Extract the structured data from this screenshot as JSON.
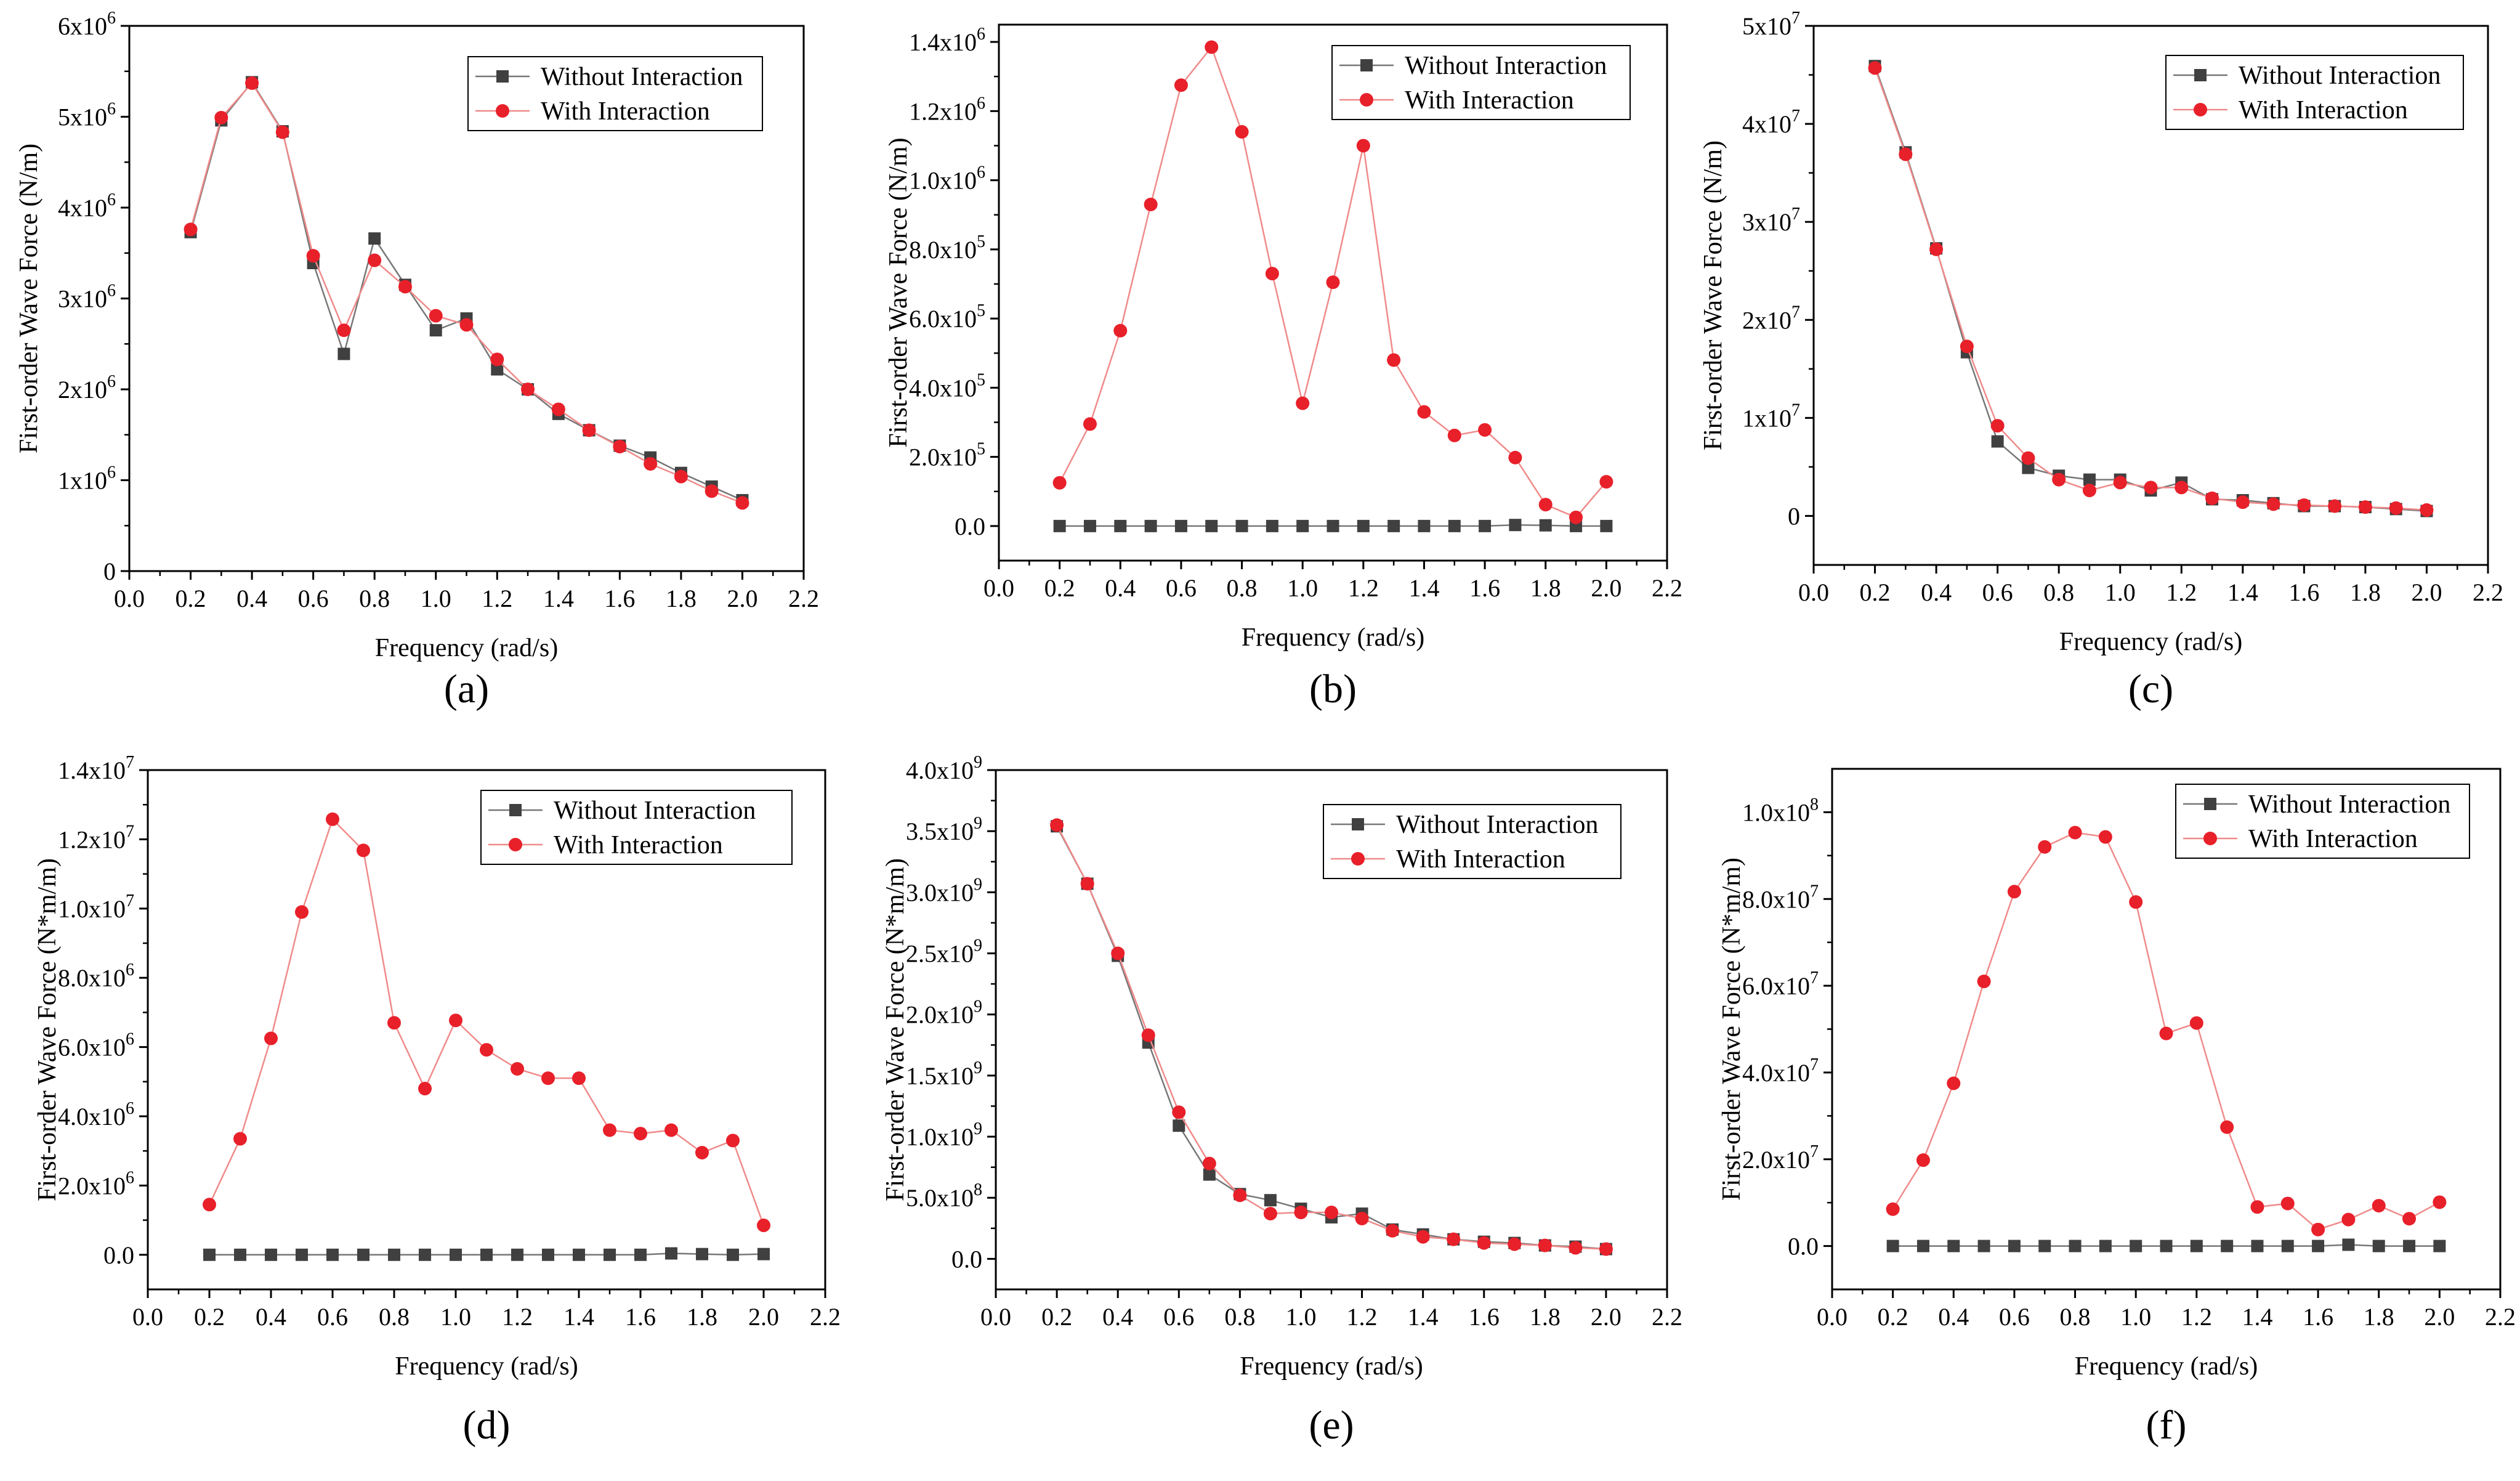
{
  "figure": {
    "legend_labels": {
      "without": "Without Interaction",
      "with": "With Interaction"
    },
    "colors": {
      "without": "#404040",
      "with": "#e8202a",
      "line_with": "#f08a8a",
      "line_without": "#777777",
      "axis": "#000000"
    }
  },
  "chart_data": [
    {
      "type": "line",
      "panel_label": "(a)",
      "xlabel": "Frequency (rad/s)",
      "ylabel": "First-order Wave Force (N/m)",
      "xlim": [
        0.0,
        2.2
      ],
      "ylim": [
        0,
        6000000
      ],
      "x_ticks": [
        "0.0",
        "0.2",
        "0.4",
        "0.6",
        "0.8",
        "1.0",
        "1.2",
        "1.4",
        "1.6",
        "1.8",
        "2.0",
        "2.2"
      ],
      "y_ticks": [
        {
          "v": 0,
          "m": "0",
          "e": ""
        },
        {
          "v": 1000000,
          "m": "1x10",
          "e": "6"
        },
        {
          "v": 2000000,
          "m": "2x10",
          "e": "6"
        },
        {
          "v": 3000000,
          "m": "3x10",
          "e": "6"
        },
        {
          "v": 4000000,
          "m": "4x10",
          "e": "6"
        },
        {
          "v": 5000000,
          "m": "5x10",
          "e": "6"
        },
        {
          "v": 6000000,
          "m": "6x10",
          "e": "6"
        }
      ],
      "legend": "top-right",
      "x": [
        0.2,
        0.3,
        0.4,
        0.5,
        0.6,
        0.7,
        0.8,
        0.9,
        1.0,
        1.1,
        1.2,
        1.3,
        1.4,
        1.5,
        1.6,
        1.7,
        1.8,
        1.9,
        2.0
      ],
      "series": [
        {
          "name": "Without Interaction",
          "values": [
            3730000,
            4960000,
            5380000,
            4840000,
            3390000,
            2390000,
            3660000,
            3150000,
            2650000,
            2780000,
            2220000,
            2000000,
            1730000,
            1550000,
            1380000,
            1250000,
            1080000,
            930000,
            780000
          ]
        },
        {
          "name": "With Interaction",
          "values": [
            3760000,
            4990000,
            5370000,
            4830000,
            3470000,
            2650000,
            3420000,
            3130000,
            2810000,
            2710000,
            2330000,
            2000000,
            1780000,
            1550000,
            1370000,
            1180000,
            1040000,
            880000,
            750000
          ]
        }
      ]
    },
    {
      "type": "line",
      "panel_label": "(b)",
      "xlabel": "Frequency (rad/s)",
      "ylabel": "First-order Wave Force (N/m)",
      "xlim": [
        0.0,
        2.2
      ],
      "ylim": [
        -100000,
        1450000
      ],
      "x_ticks": [
        "0.0",
        "0.2",
        "0.4",
        "0.6",
        "0.8",
        "1.0",
        "1.2",
        "1.4",
        "1.6",
        "1.8",
        "2.0",
        "2.2"
      ],
      "y_ticks": [
        {
          "v": 0,
          "m": "0.0",
          "e": ""
        },
        {
          "v": 200000,
          "m": "2.0x10",
          "e": "5"
        },
        {
          "v": 400000,
          "m": "4.0x10",
          "e": "5"
        },
        {
          "v": 600000,
          "m": "6.0x10",
          "e": "5"
        },
        {
          "v": 800000,
          "m": "8.0x10",
          "e": "5"
        },
        {
          "v": 1000000,
          "m": "1.0x10",
          "e": "6"
        },
        {
          "v": 1200000,
          "m": "1.2x10",
          "e": "6"
        },
        {
          "v": 1400000,
          "m": "1.4x10",
          "e": "6"
        }
      ],
      "legend": "top-right",
      "x": [
        0.2,
        0.3,
        0.4,
        0.5,
        0.6,
        0.7,
        0.8,
        0.9,
        1.0,
        1.1,
        1.2,
        1.3,
        1.4,
        1.5,
        1.6,
        1.7,
        1.8,
        1.9,
        2.0
      ],
      "series": [
        {
          "name": "Without Interaction",
          "values": [
            0,
            0,
            0,
            0,
            0,
            0,
            0,
            0,
            0,
            0,
            0,
            0,
            0,
            0,
            0,
            3000,
            2000,
            0,
            0
          ]
        },
        {
          "name": "With Interaction",
          "values": [
            125000,
            295000,
            565000,
            930000,
            1275000,
            1385000,
            1140000,
            730000,
            355000,
            705000,
            1100000,
            480000,
            330000,
            262000,
            278000,
            198000,
            62000,
            25000,
            128000
          ]
        }
      ]
    },
    {
      "type": "line",
      "panel_label": "(c)",
      "xlabel": "Frequency (rad/s)",
      "ylabel": "First-order Wave Force (N/m)",
      "xlim": [
        0.0,
        2.2
      ],
      "ylim": [
        -5000000,
        50000000
      ],
      "x_ticks": [
        "0.0",
        "0.2",
        "0.4",
        "0.6",
        "0.8",
        "1.0",
        "1.2",
        "1.4",
        "1.6",
        "1.8",
        "2.0",
        "2.2"
      ],
      "y_ticks": [
        {
          "v": 0,
          "m": "0",
          "e": ""
        },
        {
          "v": 10000000,
          "m": "1x10",
          "e": "7"
        },
        {
          "v": 20000000,
          "m": "2x10",
          "e": "7"
        },
        {
          "v": 30000000,
          "m": "3x10",
          "e": "7"
        },
        {
          "v": 40000000,
          "m": "4x10",
          "e": "7"
        },
        {
          "v": 50000000,
          "m": "5x10",
          "e": "7"
        }
      ],
      "legend": "top-right",
      "x": [
        0.2,
        0.3,
        0.4,
        0.5,
        0.6,
        0.7,
        0.8,
        0.9,
        1.0,
        1.1,
        1.2,
        1.3,
        1.4,
        1.5,
        1.6,
        1.7,
        1.8,
        1.9,
        2.0
      ],
      "series": [
        {
          "name": "Without Interaction",
          "values": [
            45900000,
            37100000,
            27300000,
            16700000,
            7600000,
            4900000,
            4100000,
            3700000,
            3700000,
            2600000,
            3400000,
            1700000,
            1600000,
            1300000,
            1000000,
            1000000,
            900000,
            700000,
            500000
          ]
        },
        {
          "name": "With Interaction",
          "values": [
            45700000,
            36900000,
            27200000,
            17300000,
            9200000,
            5900000,
            3700000,
            2600000,
            3400000,
            2900000,
            2900000,
            1800000,
            1400000,
            1200000,
            1100000,
            1000000,
            900000,
            800000,
            600000
          ]
        }
      ]
    },
    {
      "type": "line",
      "panel_label": "(d)",
      "xlabel": "Frequency (rad/s)",
      "ylabel": "First-order Wave Force (N*m/m)",
      "xlim": [
        0.0,
        2.2
      ],
      "ylim": [
        -1000000,
        14000000
      ],
      "x_ticks": [
        "0.0",
        "0.2",
        "0.4",
        "0.6",
        "0.8",
        "1.0",
        "1.2",
        "1.4",
        "1.6",
        "1.8",
        "2.0",
        "2.2"
      ],
      "y_ticks": [
        {
          "v": 0,
          "m": "0.0",
          "e": ""
        },
        {
          "v": 2000000,
          "m": "2.0x10",
          "e": "6"
        },
        {
          "v": 4000000,
          "m": "4.0x10",
          "e": "6"
        },
        {
          "v": 6000000,
          "m": "6.0x10",
          "e": "6"
        },
        {
          "v": 8000000,
          "m": "8.0x10",
          "e": "6"
        },
        {
          "v": 10000000,
          "m": "1.0x10",
          "e": "7"
        },
        {
          "v": 12000000,
          "m": "1.2x10",
          "e": "7"
        },
        {
          "v": 14000000,
          "m": "1.4x10",
          "e": "7"
        }
      ],
      "legend": "top-right",
      "x": [
        0.2,
        0.3,
        0.4,
        0.5,
        0.6,
        0.7,
        0.8,
        0.9,
        1.0,
        1.1,
        1.2,
        1.3,
        1.4,
        1.5,
        1.6,
        1.7,
        1.8,
        1.9,
        2.0
      ],
      "series": [
        {
          "name": "Without Interaction",
          "values": [
            0,
            0,
            0,
            0,
            0,
            0,
            0,
            0,
            0,
            0,
            0,
            0,
            0,
            0,
            0,
            40000,
            20000,
            0,
            20000
          ]
        },
        {
          "name": "With Interaction",
          "values": [
            1450000,
            3350000,
            6250000,
            9900000,
            12580000,
            11680000,
            6700000,
            4800000,
            6770000,
            5920000,
            5370000,
            5100000,
            5100000,
            3600000,
            3500000,
            3600000,
            2950000,
            3300000,
            850000
          ]
        }
      ]
    },
    {
      "type": "line",
      "panel_label": "(e)",
      "xlabel": "Frequency (rad/s)",
      "ylabel": "First-order Wave Force (N*m/m)",
      "xlim": [
        0.0,
        2.2
      ],
      "ylim": [
        -250000000,
        4000000000
      ],
      "x_ticks": [
        "0.0",
        "0.2",
        "0.4",
        "0.6",
        "0.8",
        "1.0",
        "1.2",
        "1.4",
        "1.6",
        "1.8",
        "2.0",
        "2.2"
      ],
      "y_ticks": [
        {
          "v": 0,
          "m": "0.0",
          "e": ""
        },
        {
          "v": 500000000,
          "m": "5.0x10",
          "e": "8"
        },
        {
          "v": 1000000000,
          "m": "1.0x10",
          "e": "9"
        },
        {
          "v": 1500000000,
          "m": "1.5x10",
          "e": "9"
        },
        {
          "v": 2000000000,
          "m": "2.0x10",
          "e": "9"
        },
        {
          "v": 2500000000,
          "m": "2.5x10",
          "e": "9"
        },
        {
          "v": 3000000000,
          "m": "3.0x10",
          "e": "9"
        },
        {
          "v": 3500000000,
          "m": "3.5x10",
          "e": "9"
        },
        {
          "v": 4000000000,
          "m": "4.0x10",
          "e": "9"
        }
      ],
      "legend": "top-right",
      "x": [
        0.2,
        0.3,
        0.4,
        0.5,
        0.6,
        0.7,
        0.8,
        0.9,
        1.0,
        1.1,
        1.2,
        1.3,
        1.4,
        1.5,
        1.6,
        1.7,
        1.8,
        1.9,
        2.0
      ],
      "series": [
        {
          "name": "Without Interaction",
          "values": [
            3540000000,
            3070000000,
            2480000000,
            1770000000,
            1090000000,
            690000000,
            530000000,
            480000000,
            410000000,
            340000000,
            370000000,
            240000000,
            200000000,
            160000000,
            140000000,
            130000000,
            110000000,
            100000000,
            80000000
          ]
        },
        {
          "name": "With Interaction",
          "values": [
            3550000000,
            3070000000,
            2500000000,
            1830000000,
            1200000000,
            780000000,
            520000000,
            370000000,
            380000000,
            380000000,
            330000000,
            230000000,
            180000000,
            160000000,
            130000000,
            120000000,
            110000000,
            90000000,
            80000000
          ]
        }
      ]
    },
    {
      "type": "line",
      "panel_label": "(f)",
      "xlabel": "Frequency (rad/s)",
      "ylabel": "First-order Wave Force (N*m/m)",
      "xlim": [
        0.0,
        2.2
      ],
      "ylim": [
        -10000000,
        110000000
      ],
      "x_ticks": [
        "0.0",
        "0.2",
        "0.4",
        "0.6",
        "0.8",
        "1.0",
        "1.2",
        "1.4",
        "1.6",
        "1.8",
        "2.0",
        "2.2"
      ],
      "y_ticks": [
        {
          "v": 0,
          "m": "0.0",
          "e": ""
        },
        {
          "v": 20000000,
          "m": "2.0x10",
          "e": "7"
        },
        {
          "v": 40000000,
          "m": "4.0x10",
          "e": "7"
        },
        {
          "v": 60000000,
          "m": "6.0x10",
          "e": "7"
        },
        {
          "v": 80000000,
          "m": "8.0x10",
          "e": "7"
        },
        {
          "v": 100000000,
          "m": "1.0x10",
          "e": "8"
        }
      ],
      "legend": "top-right",
      "x": [
        0.2,
        0.3,
        0.4,
        0.5,
        0.6,
        0.7,
        0.8,
        0.9,
        1.0,
        1.1,
        1.2,
        1.3,
        1.4,
        1.5,
        1.6,
        1.7,
        1.8,
        1.9,
        2.0
      ],
      "series": [
        {
          "name": "Without Interaction",
          "values": [
            0,
            0,
            0,
            0,
            0,
            0,
            0,
            0,
            0,
            0,
            0,
            0,
            0,
            0,
            0,
            300000,
            0,
            0,
            0
          ]
        },
        {
          "name": "With Interaction",
          "values": [
            8500000,
            19800000,
            37500000,
            61000000,
            81700000,
            92000000,
            95300000,
            94300000,
            79300000,
            49000000,
            51400000,
            27400000,
            9000000,
            9800000,
            3800000,
            6100000,
            9300000,
            6300000,
            10100000
          ]
        }
      ]
    }
  ]
}
